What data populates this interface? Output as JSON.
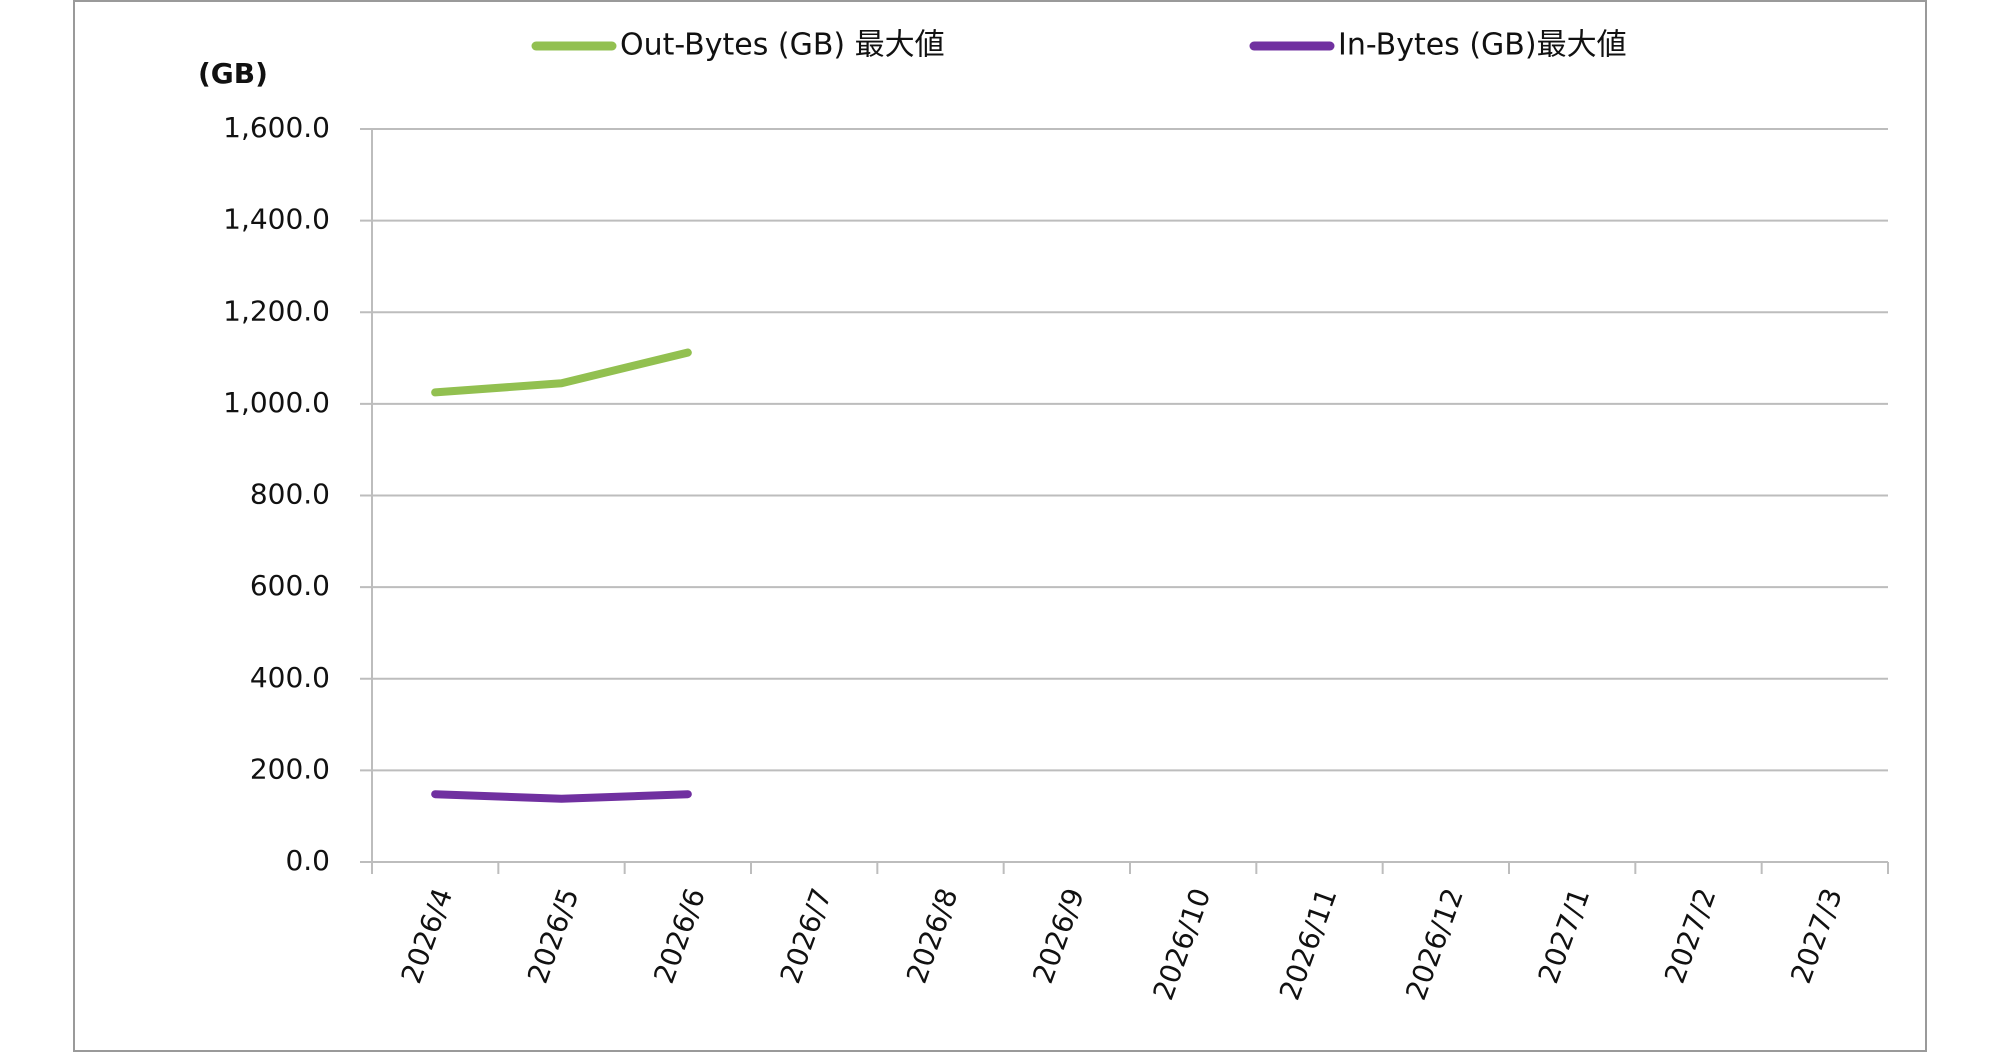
{
  "chart_data": {
    "type": "line",
    "y_label": "(GB)",
    "categories": [
      "2026/4",
      "2026/5",
      "2026/6",
      "2026/7",
      "2026/8",
      "2026/9",
      "2026/10",
      "2026/11",
      "2026/12",
      "2027/1",
      "2027/2",
      "2027/3"
    ],
    "series": [
      {
        "name": "Out-Bytes (GB) 最大値",
        "color": "#92c050",
        "values": [
          1025,
          1045,
          1112,
          null,
          null,
          null,
          null,
          null,
          null,
          null,
          null,
          null
        ]
      },
      {
        "name": "In-Bytes (GB)最大値",
        "color": "#7030a0",
        "values": [
          148,
          138,
          148,
          null,
          null,
          null,
          null,
          null,
          null,
          null,
          null,
          null
        ]
      }
    ],
    "ylim": [
      0,
      1600
    ],
    "yticks": [
      {
        "value": 0,
        "label": "0.0"
      },
      {
        "value": 200,
        "label": "200.0"
      },
      {
        "value": 400,
        "label": "400.0"
      },
      {
        "value": 600,
        "label": "600.0"
      },
      {
        "value": 800,
        "label": "800.0"
      },
      {
        "value": 1000,
        "label": "1,000.0"
      },
      {
        "value": 1200,
        "label": "1,200.0"
      },
      {
        "value": 1400,
        "label": "1,400.0"
      },
      {
        "value": 1600,
        "label": "1,600.0"
      }
    ],
    "grid": true
  }
}
